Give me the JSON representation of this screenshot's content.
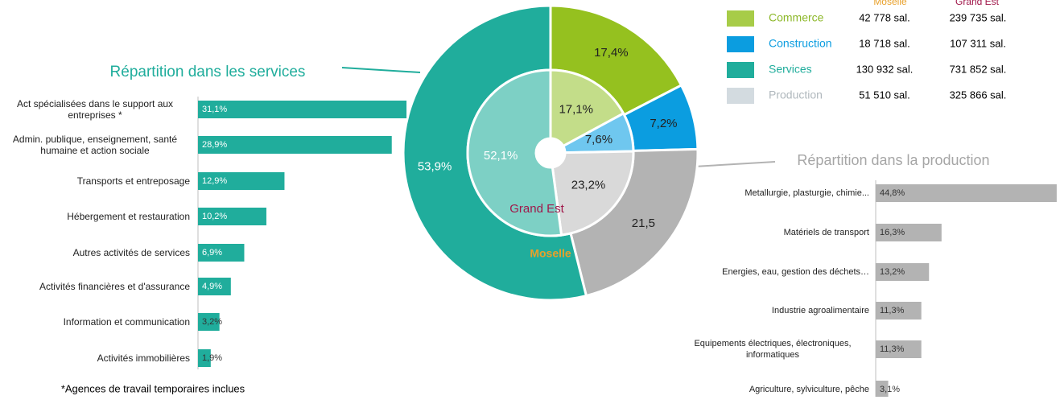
{
  "chart_data": [
    {
      "type": "donut",
      "categories": [
        "Commerce",
        "Construction",
        "Production",
        "Services"
      ],
      "series": [
        {
          "name": "Moselle",
          "values": [
            17.4,
            7.2,
            21.5,
            53.9
          ],
          "value_labels": [
            "17,4%",
            "7,2%",
            "21,5",
            "53,9%"
          ],
          "colors": [
            "#95c11f",
            "#0b9de0",
            "#b3b3b3",
            "#20ad9c"
          ],
          "label_colors": [
            "#222222",
            "#222222",
            "#222222",
            "#ffffff"
          ]
        },
        {
          "name": "Grand Est",
          "values": [
            17.1,
            7.6,
            23.2,
            52.1
          ],
          "value_labels": [
            "17,1%",
            "7,6%",
            "23,2%",
            "52,1%"
          ],
          "colors": [
            "#c3dd89",
            "#6fc7ef",
            "#d9d9d9",
            "#7dd0c5"
          ],
          "label_colors": [
            "#222222",
            "#222222",
            "#222222",
            "#ffffff"
          ]
        }
      ],
      "legend_colors": [
        "#a7cc48",
        "#0b9de0",
        "#d3dbe0",
        "#20ad9c"
      ],
      "legend_text_colors": [
        "#8db82a",
        "#0b9de0",
        "#b0b8bd",
        "#20ad9c"
      ],
      "moselle_employees": [
        "42 778 sal.",
        "18 718 sal.",
        "51 510 sal.",
        "130 932 sal."
      ],
      "grand_est_employees": [
        "239 735 sal.",
        "107 311 sal.",
        "325 866 sal.",
        "731 852 sal."
      ]
    },
    {
      "type": "barh",
      "title": "Répartition dans les services",
      "color": "#20ad9c",
      "categories": [
        "Act spécialisées dans le support aux entreprises *",
        "Admin. publique, enseignement, santé humaine et action sociale",
        "Transports et entreposage",
        "Hébergement et restauration",
        "Autres activités de services",
        "Activités financières et d'assurance",
        "Information et communication",
        "Activités immobilières"
      ],
      "values": [
        31.1,
        28.9,
        12.9,
        10.2,
        6.9,
        4.9,
        3.2,
        1.9
      ],
      "value_labels": [
        "31,1%",
        "28,9%",
        "12,9%",
        "10,2%",
        "6,9%",
        "4,9%",
        "3,2%",
        "1,9%"
      ],
      "footnote": "*Agences de travail temporaires inclues"
    },
    {
      "type": "barh",
      "title": "Répartition dans la production",
      "color": "#b3b3b3",
      "categories": [
        "Metallurgie, plasturgie, chimie...",
        "Matériels de transport",
        "Energies, eau, gestion des déchets…",
        "Industrie agroalimentaire",
        "Equipements électriques, électroniques, informatiques",
        "Agriculture, sylviculture, pêche"
      ],
      "values": [
        44.8,
        16.3,
        13.2,
        11.3,
        11.3,
        3.1
      ],
      "value_labels": [
        "44,8%",
        "16,3%",
        "13,2%",
        "11,3%",
        "11,3%",
        "3,1%"
      ]
    }
  ]
}
